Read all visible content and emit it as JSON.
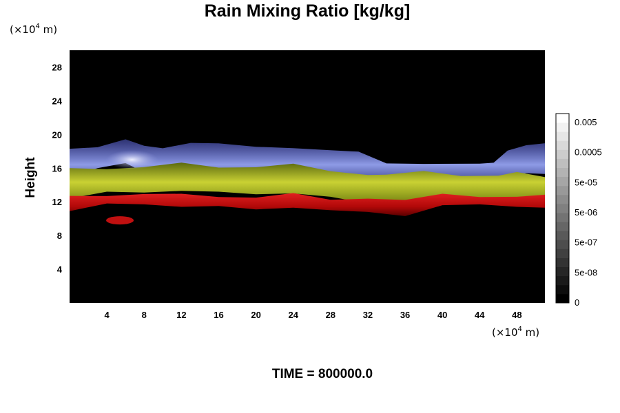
{
  "chart_data": {
    "type": "heatmap",
    "title": "Rain Mixing Ratio [kg/kg]",
    "ylabel": "Height",
    "y_unit": {
      "prefix": "(×10",
      "exp": "4",
      "suffix": " m)"
    },
    "x_unit": {
      "prefix": "(×10",
      "exp": "4",
      "suffix": " m)"
    },
    "x_ticks": [
      "4",
      "8",
      "12",
      "16",
      "20",
      "24",
      "28",
      "32",
      "36",
      "40",
      "44",
      "48"
    ],
    "y_ticks": [
      "4",
      "8",
      "12",
      "16",
      "20",
      "24",
      "28"
    ],
    "xlim": [
      0,
      51
    ],
    "ylim": [
      0,
      30
    ],
    "colorbar": {
      "labels": [
        "0.005",
        "0.0005",
        "5e-05",
        "5e-06",
        "5e-07",
        "5e-08",
        "0"
      ],
      "levels": 21,
      "colors": [
        "#000000",
        "#ffffff"
      ]
    },
    "background_color": "#000000",
    "layers": [
      {
        "color": "#8896e0",
        "profile": [
          [
            0,
            18.3
          ],
          [
            3,
            18.6
          ],
          [
            6,
            19.3
          ],
          [
            8,
            18.3
          ],
          [
            10,
            18.6
          ],
          [
            13,
            19.0
          ],
          [
            16,
            18.7
          ],
          [
            20,
            18.9
          ],
          [
            24,
            18.5
          ],
          [
            28,
            18.0
          ],
          [
            31,
            17.6
          ],
          [
            34,
            16.8
          ],
          [
            38,
            16.5
          ],
          [
            44,
            16.3
          ],
          [
            45.5,
            17.0
          ],
          [
            47,
            18.2
          ],
          [
            49,
            18.6
          ],
          [
            51,
            18.6
          ]
        ]
      },
      {
        "color": "#b5c12a",
        "profile": [
          [
            0,
            16.0
          ],
          [
            4,
            16.0
          ],
          [
            8,
            16.0
          ],
          [
            12,
            16.3
          ],
          [
            16,
            16.3
          ],
          [
            20,
            16.1
          ],
          [
            24,
            16.3
          ],
          [
            28,
            16.0
          ],
          [
            32,
            15.3
          ],
          [
            34,
            15.1
          ],
          [
            38,
            15.3
          ],
          [
            42,
            15.3
          ],
          [
            46,
            15.1
          ],
          [
            48,
            15.3
          ],
          [
            51,
            15.3
          ]
        ]
      },
      {
        "color": "#c01010",
        "profile": [
          [
            0,
            12.7
          ],
          [
            4,
            12.8
          ],
          [
            8,
            12.8
          ],
          [
            12,
            12.6
          ],
          [
            16,
            12.8
          ],
          [
            20,
            12.5
          ],
          [
            24,
            12.8
          ],
          [
            28,
            12.6
          ],
          [
            32,
            12.5
          ],
          [
            36,
            12.1
          ],
          [
            40,
            12.6
          ],
          [
            44,
            12.8
          ],
          [
            48,
            12.6
          ],
          [
            51,
            12.6
          ]
        ]
      }
    ],
    "annotation": "TIME = 800000.0"
  }
}
